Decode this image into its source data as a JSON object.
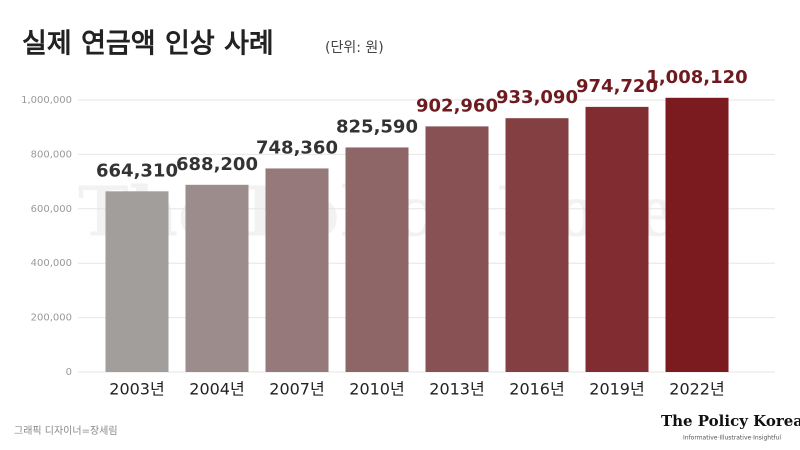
{
  "chart_data": {
    "type": "bar",
    "title": "실제 연금액 인상 사례",
    "subtitle": "(단위: 원)",
    "categories": [
      "2003년",
      "2004년",
      "2007년",
      "2010년",
      "2013년",
      "2016년",
      "2019년",
      "2022년"
    ],
    "values": [
      664310,
      688200,
      748360,
      825590,
      902960,
      933090,
      974720,
      1008120
    ],
    "value_labels": [
      "664,310",
      "688,200",
      "748,360",
      "825,590",
      "902,960",
      "933,090",
      "974,720",
      "1,008,120"
    ],
    "colors": [
      "#a19e9c",
      "#9c8c8b",
      "#96797a",
      "#8f6668",
      "#885255",
      "#843f43",
      "#802c30",
      "#7b1a1f"
    ],
    "value_label_colors": [
      "#333333",
      "#333333",
      "#333333",
      "#333333",
      "#6e1a1f",
      "#6e1a1f",
      "#6e1a1f",
      "#6e1a1f"
    ],
    "ylim": [
      0,
      1100000
    ],
    "yticks": [
      0,
      {
        "value": 200000,
        "label": "200,000"
      },
      {
        "value": 400000,
        "label": "400,000"
      },
      {
        "value": 600000,
        "label": "600,000"
      },
      {
        "value": 800000,
        "label": "800,000"
      },
      {
        "value": 1000000,
        "label": "1,000,000"
      }
    ],
    "grid": true
  },
  "watermark": "The Policy Korea",
  "credit": "그래픽 디자이너=장세림",
  "logo": "The Policy Korea",
  "tagline": "Informative·Illustrative·Insightful"
}
